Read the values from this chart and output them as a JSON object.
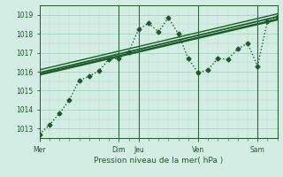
{
  "bg_color": "#d4ede4",
  "grid_color": "#a8d5c2",
  "line_color": "#1a5c28",
  "text_color": "#1a5c28",
  "xlabel": "Pression niveau de la mer( hPa )",
  "ylim": [
    1012.5,
    1019.5
  ],
  "yticks": [
    1013,
    1014,
    1015,
    1016,
    1017,
    1018,
    1019
  ],
  "xtick_labels": [
    "Mer",
    "Dim",
    "Jeu",
    "Ven",
    "Sam"
  ],
  "xtick_positions": [
    0,
    4,
    5,
    8,
    11
  ],
  "xlim": [
    0,
    12
  ],
  "vlines_x": [
    4,
    5,
    8,
    11
  ],
  "vlines_color": "#2a6a38",
  "vlines_linewidth": 0.8,
  "series_dotted": {
    "x": [
      0,
      0.5,
      1,
      1.5,
      2,
      2.5,
      3,
      3.5,
      4,
      4.5,
      5,
      5.5,
      6,
      6.5,
      7,
      7.5,
      8,
      8.5,
      9,
      9.5,
      10,
      10.5,
      11,
      11.5,
      12
    ],
    "y": [
      1012.7,
      1013.2,
      1013.8,
      1014.5,
      1015.55,
      1015.75,
      1016.05,
      1016.65,
      1016.7,
      1017.05,
      1018.25,
      1018.55,
      1018.1,
      1018.85,
      1018.0,
      1016.7,
      1015.95,
      1016.1,
      1016.7,
      1016.65,
      1017.2,
      1017.5,
      1016.3,
      1018.65,
      1018.9
    ],
    "linewidth": 1.0,
    "markersize": 2.5
  },
  "series_solid": [
    {
      "x": [
        0,
        12
      ],
      "y": [
        1015.85,
        1018.75
      ],
      "linewidth": 1.8
    },
    {
      "x": [
        0,
        12
      ],
      "y": [
        1015.95,
        1018.9
      ],
      "linewidth": 1.3
    },
    {
      "x": [
        0,
        12
      ],
      "y": [
        1016.1,
        1019.05
      ],
      "linewidth": 1.0
    }
  ]
}
